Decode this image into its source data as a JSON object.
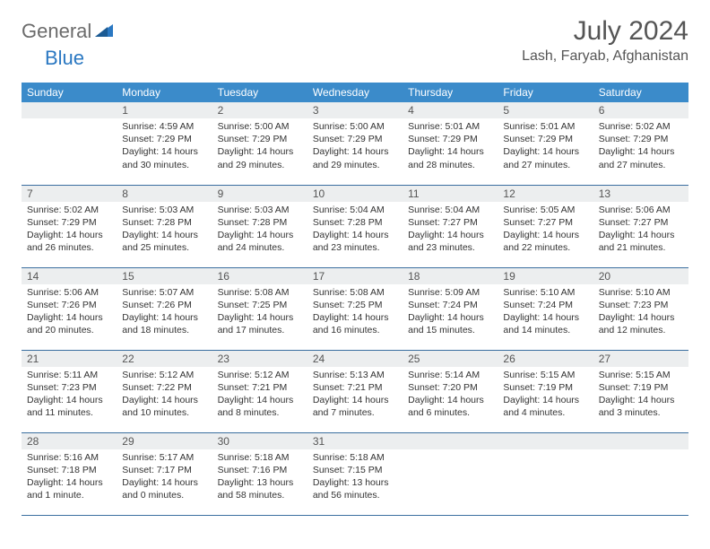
{
  "logo": {
    "part1": "General",
    "part2": "Blue"
  },
  "header": {
    "month_year": "July 2024",
    "location": "Lash, Faryab, Afghanistan"
  },
  "colors": {
    "header_bg": "#3b8bca",
    "header_text": "#ffffff",
    "daynum_bg": "#eceeef",
    "row_border": "#3b6fa0",
    "logo_gray": "#6b6b6b",
    "logo_blue": "#2b78c2",
    "title_color": "#555555",
    "body_text": "#333333"
  },
  "weekdays": [
    "Sunday",
    "Monday",
    "Tuesday",
    "Wednesday",
    "Thursday",
    "Friday",
    "Saturday"
  ],
  "weeks": [
    [
      null,
      {
        "n": "1",
        "sr": "4:59 AM",
        "ss": "7:29 PM",
        "dl": "14 hours and 30 minutes."
      },
      {
        "n": "2",
        "sr": "5:00 AM",
        "ss": "7:29 PM",
        "dl": "14 hours and 29 minutes."
      },
      {
        "n": "3",
        "sr": "5:00 AM",
        "ss": "7:29 PM",
        "dl": "14 hours and 29 minutes."
      },
      {
        "n": "4",
        "sr": "5:01 AM",
        "ss": "7:29 PM",
        "dl": "14 hours and 28 minutes."
      },
      {
        "n": "5",
        "sr": "5:01 AM",
        "ss": "7:29 PM",
        "dl": "14 hours and 27 minutes."
      },
      {
        "n": "6",
        "sr": "5:02 AM",
        "ss": "7:29 PM",
        "dl": "14 hours and 27 minutes."
      }
    ],
    [
      {
        "n": "7",
        "sr": "5:02 AM",
        "ss": "7:29 PM",
        "dl": "14 hours and 26 minutes."
      },
      {
        "n": "8",
        "sr": "5:03 AM",
        "ss": "7:28 PM",
        "dl": "14 hours and 25 minutes."
      },
      {
        "n": "9",
        "sr": "5:03 AM",
        "ss": "7:28 PM",
        "dl": "14 hours and 24 minutes."
      },
      {
        "n": "10",
        "sr": "5:04 AM",
        "ss": "7:28 PM",
        "dl": "14 hours and 23 minutes."
      },
      {
        "n": "11",
        "sr": "5:04 AM",
        "ss": "7:27 PM",
        "dl": "14 hours and 23 minutes."
      },
      {
        "n": "12",
        "sr": "5:05 AM",
        "ss": "7:27 PM",
        "dl": "14 hours and 22 minutes."
      },
      {
        "n": "13",
        "sr": "5:06 AM",
        "ss": "7:27 PM",
        "dl": "14 hours and 21 minutes."
      }
    ],
    [
      {
        "n": "14",
        "sr": "5:06 AM",
        "ss": "7:26 PM",
        "dl": "14 hours and 20 minutes."
      },
      {
        "n": "15",
        "sr": "5:07 AM",
        "ss": "7:26 PM",
        "dl": "14 hours and 18 minutes."
      },
      {
        "n": "16",
        "sr": "5:08 AM",
        "ss": "7:25 PM",
        "dl": "14 hours and 17 minutes."
      },
      {
        "n": "17",
        "sr": "5:08 AM",
        "ss": "7:25 PM",
        "dl": "14 hours and 16 minutes."
      },
      {
        "n": "18",
        "sr": "5:09 AM",
        "ss": "7:24 PM",
        "dl": "14 hours and 15 minutes."
      },
      {
        "n": "19",
        "sr": "5:10 AM",
        "ss": "7:24 PM",
        "dl": "14 hours and 14 minutes."
      },
      {
        "n": "20",
        "sr": "5:10 AM",
        "ss": "7:23 PM",
        "dl": "14 hours and 12 minutes."
      }
    ],
    [
      {
        "n": "21",
        "sr": "5:11 AM",
        "ss": "7:23 PM",
        "dl": "14 hours and 11 minutes."
      },
      {
        "n": "22",
        "sr": "5:12 AM",
        "ss": "7:22 PM",
        "dl": "14 hours and 10 minutes."
      },
      {
        "n": "23",
        "sr": "5:12 AM",
        "ss": "7:21 PM",
        "dl": "14 hours and 8 minutes."
      },
      {
        "n": "24",
        "sr": "5:13 AM",
        "ss": "7:21 PM",
        "dl": "14 hours and 7 minutes."
      },
      {
        "n": "25",
        "sr": "5:14 AM",
        "ss": "7:20 PM",
        "dl": "14 hours and 6 minutes."
      },
      {
        "n": "26",
        "sr": "5:15 AM",
        "ss": "7:19 PM",
        "dl": "14 hours and 4 minutes."
      },
      {
        "n": "27",
        "sr": "5:15 AM",
        "ss": "7:19 PM",
        "dl": "14 hours and 3 minutes."
      }
    ],
    [
      {
        "n": "28",
        "sr": "5:16 AM",
        "ss": "7:18 PM",
        "dl": "14 hours and 1 minute."
      },
      {
        "n": "29",
        "sr": "5:17 AM",
        "ss": "7:17 PM",
        "dl": "14 hours and 0 minutes."
      },
      {
        "n": "30",
        "sr": "5:18 AM",
        "ss": "7:16 PM",
        "dl": "13 hours and 58 minutes."
      },
      {
        "n": "31",
        "sr": "5:18 AM",
        "ss": "7:15 PM",
        "dl": "13 hours and 56 minutes."
      },
      null,
      null,
      null
    ]
  ],
  "labels": {
    "sunrise": "Sunrise:",
    "sunset": "Sunset:",
    "daylight": "Daylight:"
  }
}
